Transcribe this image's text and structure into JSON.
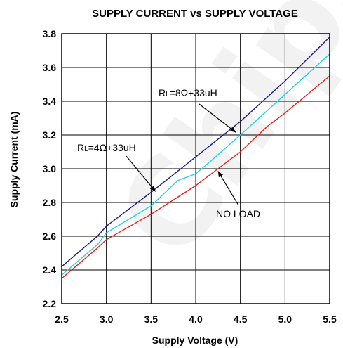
{
  "watermark": "Chipsea",
  "chart_data": {
    "type": "line",
    "title": "SUPPLY CURRENT vs SUPPLY VOLTAGE",
    "xlabel": "Supply Voltage (V)",
    "ylabel": "Supply Current (mA)",
    "xlim": [
      2.5,
      5.5
    ],
    "ylim": [
      2.2,
      3.8
    ],
    "x_ticks": [
      "2.5",
      "3.0",
      "3.5",
      "4.0",
      "4.5",
      "5.0",
      "5.5"
    ],
    "y_ticks": [
      "2.2",
      "2.4",
      "2.6",
      "2.8",
      "3.0",
      "3.2",
      "3.4",
      "3.6",
      "3.8"
    ],
    "grid": true,
    "series": [
      {
        "name": "RL=4Ω+33uH",
        "color": "#1a1a8c",
        "x": [
          2.5,
          2.9,
          3.0,
          3.5,
          4.0,
          4.5,
          5.0,
          5.5
        ],
        "y": [
          2.42,
          2.6,
          2.66,
          2.86,
          3.07,
          3.28,
          3.52,
          3.78
        ]
      },
      {
        "name": "RL=8Ω+33uH",
        "color": "#1ed4e6",
        "x": [
          2.5,
          2.9,
          3.0,
          3.5,
          3.8,
          4.0,
          4.2,
          4.5,
          5.0,
          5.5
        ],
        "y": [
          2.37,
          2.55,
          2.62,
          2.78,
          2.93,
          2.97,
          3.06,
          3.2,
          3.44,
          3.68
        ]
      },
      {
        "name": "NO LOAD",
        "color": "#e8201c",
        "x": [
          2.5,
          2.9,
          3.0,
          3.5,
          4.0,
          4.5,
          4.8,
          5.0,
          5.5
        ],
        "y": [
          2.35,
          2.53,
          2.58,
          2.73,
          2.9,
          3.1,
          3.25,
          3.33,
          3.55
        ]
      }
    ],
    "annotations": [
      {
        "label_main": "R",
        "label_sub": "L",
        "label_rest": "=8Ω+33uH",
        "series": "RL=8Ω+33uH"
      },
      {
        "label_main": "R",
        "label_sub": "L",
        "label_rest": "=4Ω+33uH",
        "series": "RL=4Ω+33uH"
      },
      {
        "label_main": "NO LOAD",
        "label_sub": "",
        "label_rest": "",
        "series": "NO LOAD"
      }
    ]
  }
}
